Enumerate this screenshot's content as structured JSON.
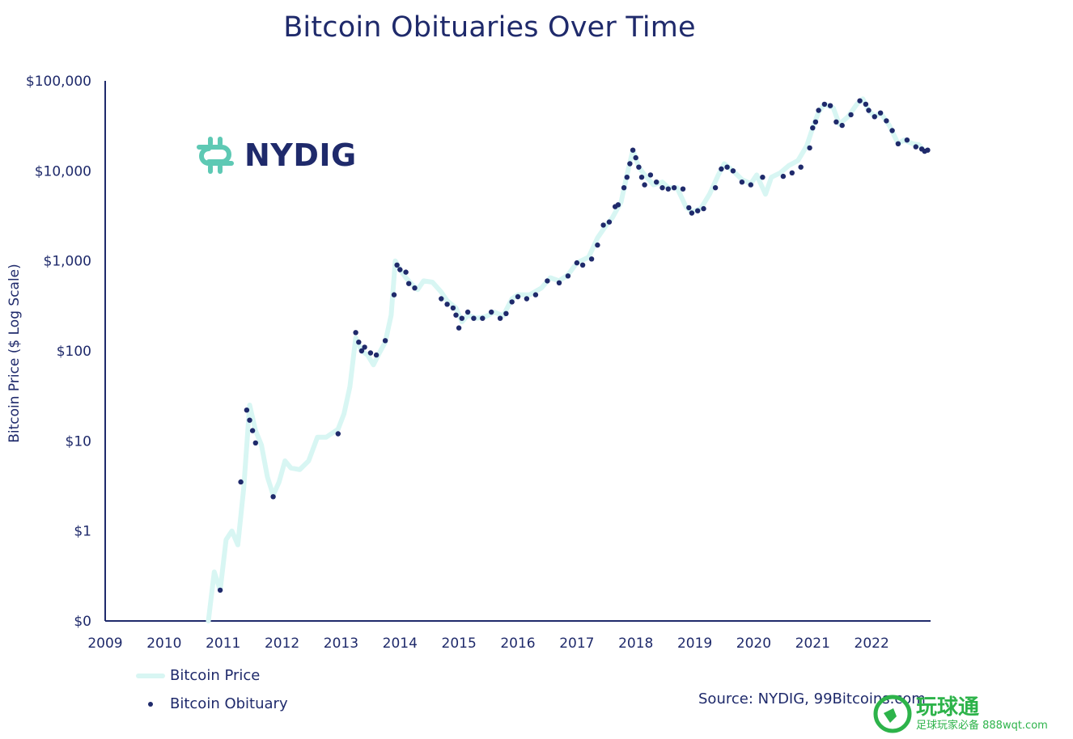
{
  "chart_data": {
    "type": "line",
    "title": "Bitcoin Obituaries Over Time",
    "ylabel": "Bitcoin Price ($ Log Scale)",
    "xlabel": "",
    "yscale": "log",
    "ylim": [
      0.01,
      100000
    ],
    "xlim": [
      2009,
      2023
    ],
    "x_ticks": [
      "2009",
      "2010",
      "2011",
      "2012",
      "2013",
      "2014",
      "2015",
      "2016",
      "2017",
      "2018",
      "2019",
      "2020",
      "2021",
      "2022"
    ],
    "y_ticks": [
      {
        "value": 100000,
        "label": "$100,000"
      },
      {
        "value": 10000,
        "label": "$10,000"
      },
      {
        "value": 1000,
        "label": "$1,000"
      },
      {
        "value": 100,
        "label": "$100"
      },
      {
        "value": 10,
        "label": "$10"
      },
      {
        "value": 1,
        "label": "$1"
      },
      {
        "value": 0.1,
        "label": "$0"
      }
    ],
    "grid": false,
    "legend_position": "bottom-left",
    "series": [
      {
        "name": "Bitcoin Price",
        "color": "#d8f6f3",
        "points": [
          [
            2010.75,
            0.1
          ],
          [
            2010.85,
            0.35
          ],
          [
            2010.95,
            0.22
          ],
          [
            2011.05,
            0.8
          ],
          [
            2011.15,
            1.0
          ],
          [
            2011.25,
            0.7
          ],
          [
            2011.35,
            3
          ],
          [
            2011.45,
            25
          ],
          [
            2011.55,
            13
          ],
          [
            2011.65,
            9
          ],
          [
            2011.75,
            4
          ],
          [
            2011.85,
            2.5
          ],
          [
            2011.95,
            3.5
          ],
          [
            2012.05,
            6
          ],
          [
            2012.15,
            5
          ],
          [
            2012.3,
            4.8
          ],
          [
            2012.45,
            6
          ],
          [
            2012.6,
            11
          ],
          [
            2012.75,
            11
          ],
          [
            2012.95,
            13.5
          ],
          [
            2013.05,
            20
          ],
          [
            2013.15,
            40
          ],
          [
            2013.25,
            140
          ],
          [
            2013.35,
            100
          ],
          [
            2013.45,
            90
          ],
          [
            2013.55,
            70
          ],
          [
            2013.65,
            95
          ],
          [
            2013.75,
            125
          ],
          [
            2013.85,
            250
          ],
          [
            2013.92,
            1000
          ],
          [
            2014.0,
            800
          ],
          [
            2014.1,
            650
          ],
          [
            2014.2,
            550
          ],
          [
            2014.3,
            480
          ],
          [
            2014.4,
            600
          ],
          [
            2014.55,
            580
          ],
          [
            2014.7,
            450
          ],
          [
            2014.8,
            360
          ],
          [
            2014.95,
            300
          ],
          [
            2015.05,
            210
          ],
          [
            2015.15,
            250
          ],
          [
            2015.3,
            230
          ],
          [
            2015.45,
            240
          ],
          [
            2015.6,
            270
          ],
          [
            2015.75,
            245
          ],
          [
            2015.9,
            380
          ],
          [
            2016.0,
            420
          ],
          [
            2016.2,
            420
          ],
          [
            2016.4,
            500
          ],
          [
            2016.55,
            650
          ],
          [
            2016.7,
            600
          ],
          [
            2016.85,
            700
          ],
          [
            2017.0,
            950
          ],
          [
            2017.2,
            1100
          ],
          [
            2017.35,
            1800
          ],
          [
            2017.5,
            2500
          ],
          [
            2017.6,
            3000
          ],
          [
            2017.75,
            4500
          ],
          [
            2017.85,
            9000
          ],
          [
            2017.95,
            17000
          ],
          [
            2018.05,
            11000
          ],
          [
            2018.15,
            9000
          ],
          [
            2018.3,
            7000
          ],
          [
            2018.45,
            7500
          ],
          [
            2018.55,
            6500
          ],
          [
            2018.7,
            6500
          ],
          [
            2018.85,
            4000
          ],
          [
            2018.95,
            3500
          ],
          [
            2019.1,
            3800
          ],
          [
            2019.25,
            5500
          ],
          [
            2019.4,
            9000
          ],
          [
            2019.5,
            12000
          ],
          [
            2019.65,
            10000
          ],
          [
            2019.8,
            8000
          ],
          [
            2019.95,
            7200
          ],
          [
            2020.05,
            9000
          ],
          [
            2020.2,
            5500
          ],
          [
            2020.3,
            8500
          ],
          [
            2020.45,
            9500
          ],
          [
            2020.6,
            11500
          ],
          [
            2020.75,
            13000
          ],
          [
            2020.9,
            19000
          ],
          [
            2021.0,
            30000
          ],
          [
            2021.1,
            45000
          ],
          [
            2021.2,
            55000
          ],
          [
            2021.35,
            50000
          ],
          [
            2021.45,
            33000
          ],
          [
            2021.6,
            40000
          ],
          [
            2021.75,
            55000
          ],
          [
            2021.85,
            63000
          ],
          [
            2021.95,
            47000
          ],
          [
            2022.05,
            40000
          ],
          [
            2022.15,
            44000
          ],
          [
            2022.3,
            32000
          ],
          [
            2022.45,
            20000
          ],
          [
            2022.55,
            22000
          ],
          [
            2022.7,
            20000
          ],
          [
            2022.8,
            19500
          ],
          [
            2022.9,
            16500
          ],
          [
            2022.95,
            17000
          ]
        ]
      },
      {
        "name": "Bitcoin Obituary",
        "color": "#1f2a6b",
        "points": [
          [
            2010.95,
            0.22
          ],
          [
            2011.3,
            3.5
          ],
          [
            2011.4,
            22
          ],
          [
            2011.45,
            17
          ],
          [
            2011.5,
            13
          ],
          [
            2011.55,
            9.5
          ],
          [
            2011.85,
            2.4
          ],
          [
            2012.95,
            12
          ],
          [
            2013.25,
            160
          ],
          [
            2013.3,
            125
          ],
          [
            2013.35,
            100
          ],
          [
            2013.4,
            110
          ],
          [
            2013.5,
            95
          ],
          [
            2013.6,
            90
          ],
          [
            2013.75,
            130
          ],
          [
            2013.9,
            420
          ],
          [
            2013.95,
            900
          ],
          [
            2014.0,
            800
          ],
          [
            2014.1,
            750
          ],
          [
            2014.15,
            560
          ],
          [
            2014.25,
            500
          ],
          [
            2014.7,
            380
          ],
          [
            2014.8,
            330
          ],
          [
            2014.9,
            300
          ],
          [
            2014.95,
            250
          ],
          [
            2015.0,
            180
          ],
          [
            2015.05,
            230
          ],
          [
            2015.15,
            270
          ],
          [
            2015.25,
            230
          ],
          [
            2015.4,
            230
          ],
          [
            2015.55,
            270
          ],
          [
            2015.7,
            230
          ],
          [
            2015.8,
            260
          ],
          [
            2015.9,
            350
          ],
          [
            2016.0,
            400
          ],
          [
            2016.15,
            380
          ],
          [
            2016.3,
            420
          ],
          [
            2016.5,
            600
          ],
          [
            2016.7,
            570
          ],
          [
            2016.85,
            680
          ],
          [
            2017.0,
            950
          ],
          [
            2017.1,
            900
          ],
          [
            2017.25,
            1050
          ],
          [
            2017.35,
            1500
          ],
          [
            2017.45,
            2500
          ],
          [
            2017.55,
            2700
          ],
          [
            2017.65,
            4000
          ],
          [
            2017.7,
            4200
          ],
          [
            2017.8,
            6500
          ],
          [
            2017.85,
            8500
          ],
          [
            2017.9,
            12000
          ],
          [
            2017.95,
            17000
          ],
          [
            2018.0,
            14000
          ],
          [
            2018.05,
            11000
          ],
          [
            2018.1,
            8500
          ],
          [
            2018.15,
            7000
          ],
          [
            2018.25,
            9000
          ],
          [
            2018.35,
            7500
          ],
          [
            2018.45,
            6500
          ],
          [
            2018.55,
            6300
          ],
          [
            2018.65,
            6500
          ],
          [
            2018.8,
            6300
          ],
          [
            2018.9,
            3900
          ],
          [
            2018.95,
            3400
          ],
          [
            2019.05,
            3600
          ],
          [
            2019.15,
            3800
          ],
          [
            2019.35,
            6500
          ],
          [
            2019.45,
            10500
          ],
          [
            2019.55,
            11000
          ],
          [
            2019.65,
            10000
          ],
          [
            2019.8,
            7500
          ],
          [
            2019.95,
            7000
          ],
          [
            2020.15,
            8500
          ],
          [
            2020.5,
            8700
          ],
          [
            2020.65,
            9500
          ],
          [
            2020.8,
            11000
          ],
          [
            2020.95,
            18000
          ],
          [
            2021.0,
            30000
          ],
          [
            2021.05,
            35000
          ],
          [
            2021.1,
            47000
          ],
          [
            2021.2,
            55000
          ],
          [
            2021.3,
            53000
          ],
          [
            2021.4,
            35000
          ],
          [
            2021.5,
            32000
          ],
          [
            2021.65,
            42000
          ],
          [
            2021.8,
            60000
          ],
          [
            2021.9,
            55000
          ],
          [
            2021.95,
            47000
          ],
          [
            2022.05,
            40000
          ],
          [
            2022.15,
            44000
          ],
          [
            2022.25,
            36000
          ],
          [
            2022.35,
            28000
          ],
          [
            2022.45,
            20000
          ],
          [
            2022.6,
            22000
          ],
          [
            2022.75,
            18500
          ],
          [
            2022.85,
            17500
          ],
          [
            2022.9,
            16500
          ],
          [
            2022.95,
            17000
          ]
        ]
      }
    ]
  },
  "logo": {
    "text": "NYDIG"
  },
  "legend": {
    "price_label": "Bitcoin Price",
    "obituary_label": "Bitcoin Obituary"
  },
  "source": "Source: NYDIG, 99Bitcoins.com",
  "watermark": {
    "big": "玩球通",
    "small": "足球玩家必备 888wqt.com"
  }
}
